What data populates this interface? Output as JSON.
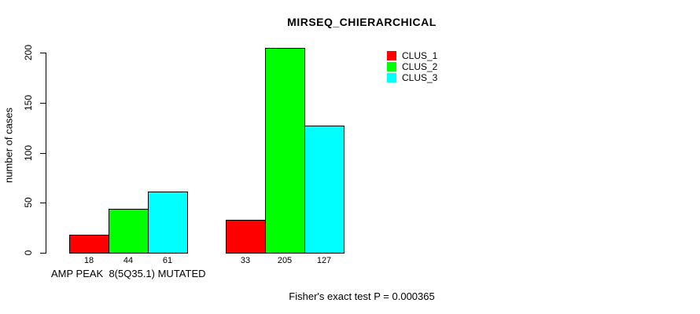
{
  "chart_data": {
    "type": "bar",
    "title": "MIRSEQ_CHIERARCHICAL",
    "ylabel": "number of cases",
    "xlabel": "AMP PEAK  8(5Q35.1) MUTATED",
    "footer": "Fisher's exact test P = 0.000365",
    "ylim": [
      0,
      200
    ],
    "yticks": [
      0,
      50,
      100,
      150,
      200
    ],
    "grid": false,
    "legend_position": "top-right",
    "series": [
      {
        "name": "CLUS_1",
        "color": "#ff0000"
      },
      {
        "name": "CLUS_2",
        "color": "#00ff00"
      },
      {
        "name": "CLUS_3",
        "color": "#00ffff"
      }
    ],
    "groups": [
      {
        "values": [
          18,
          44,
          61
        ]
      },
      {
        "values": [
          33,
          205,
          127
        ]
      }
    ]
  }
}
